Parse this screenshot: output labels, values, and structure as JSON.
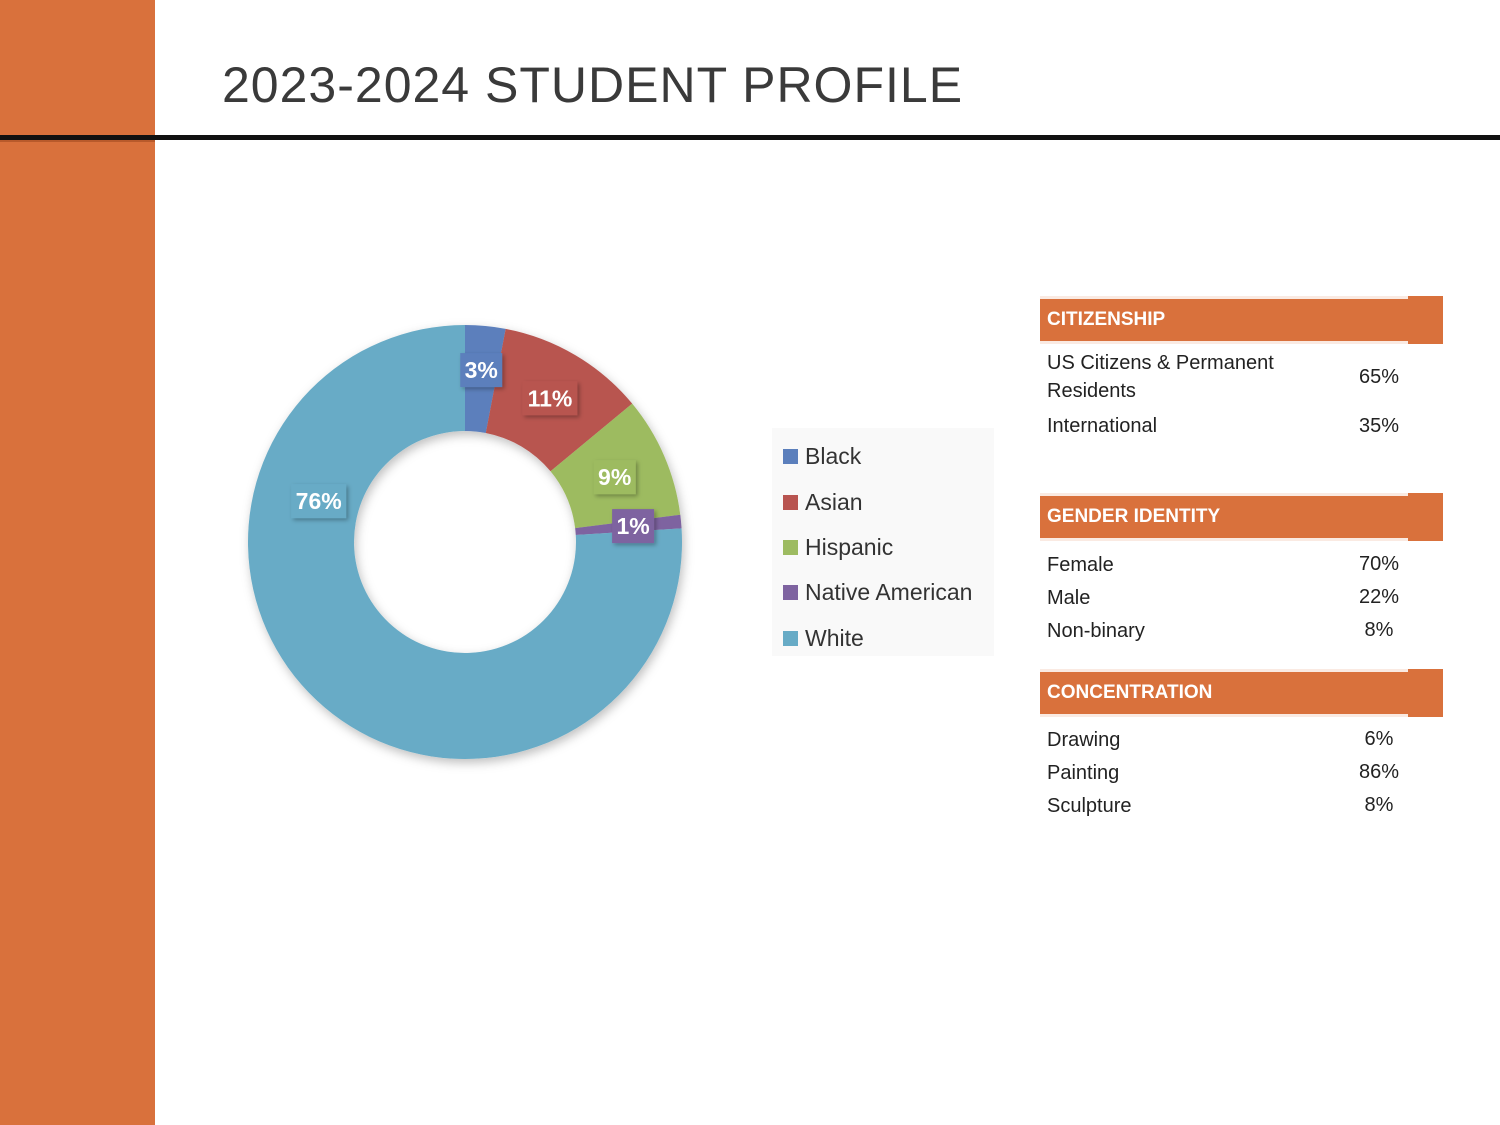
{
  "page": {
    "title": "2023-2024 STUDENT PROFILE",
    "accent_color": "#d9713c"
  },
  "chart_data": {
    "type": "pie",
    "variant": "donut",
    "categories": [
      "Black",
      "Asian",
      "Hispanic",
      "Native American",
      "White"
    ],
    "values": [
      3,
      11,
      9,
      1,
      76
    ],
    "data_labels": [
      "3%",
      "11%",
      "9%",
      "1%",
      "76%"
    ],
    "colors": [
      "#5b7fbc",
      "#b85450",
      "#9dbb61",
      "#7e63a0",
      "#67abc6"
    ],
    "legend_position": "right"
  },
  "tables": [
    {
      "header": "CITIZENSHIP",
      "rows": [
        {
          "label": "US Citizens & Permanent Residents",
          "value": "65%"
        },
        {
          "label": "International",
          "value": "35%"
        }
      ]
    },
    {
      "header": "GENDER IDENTITY",
      "rows": [
        {
          "label": "Female",
          "value": "70%"
        },
        {
          "label": "Male",
          "value": "22%"
        },
        {
          "label": "Non-binary",
          "value": "8%"
        }
      ]
    },
    {
      "header": "CONCENTRATION",
      "rows": [
        {
          "label": "Drawing",
          "value": "6%"
        },
        {
          "label": "Painting",
          "value": "86%"
        },
        {
          "label": "Sculpture",
          "value": "8%"
        }
      ]
    }
  ]
}
